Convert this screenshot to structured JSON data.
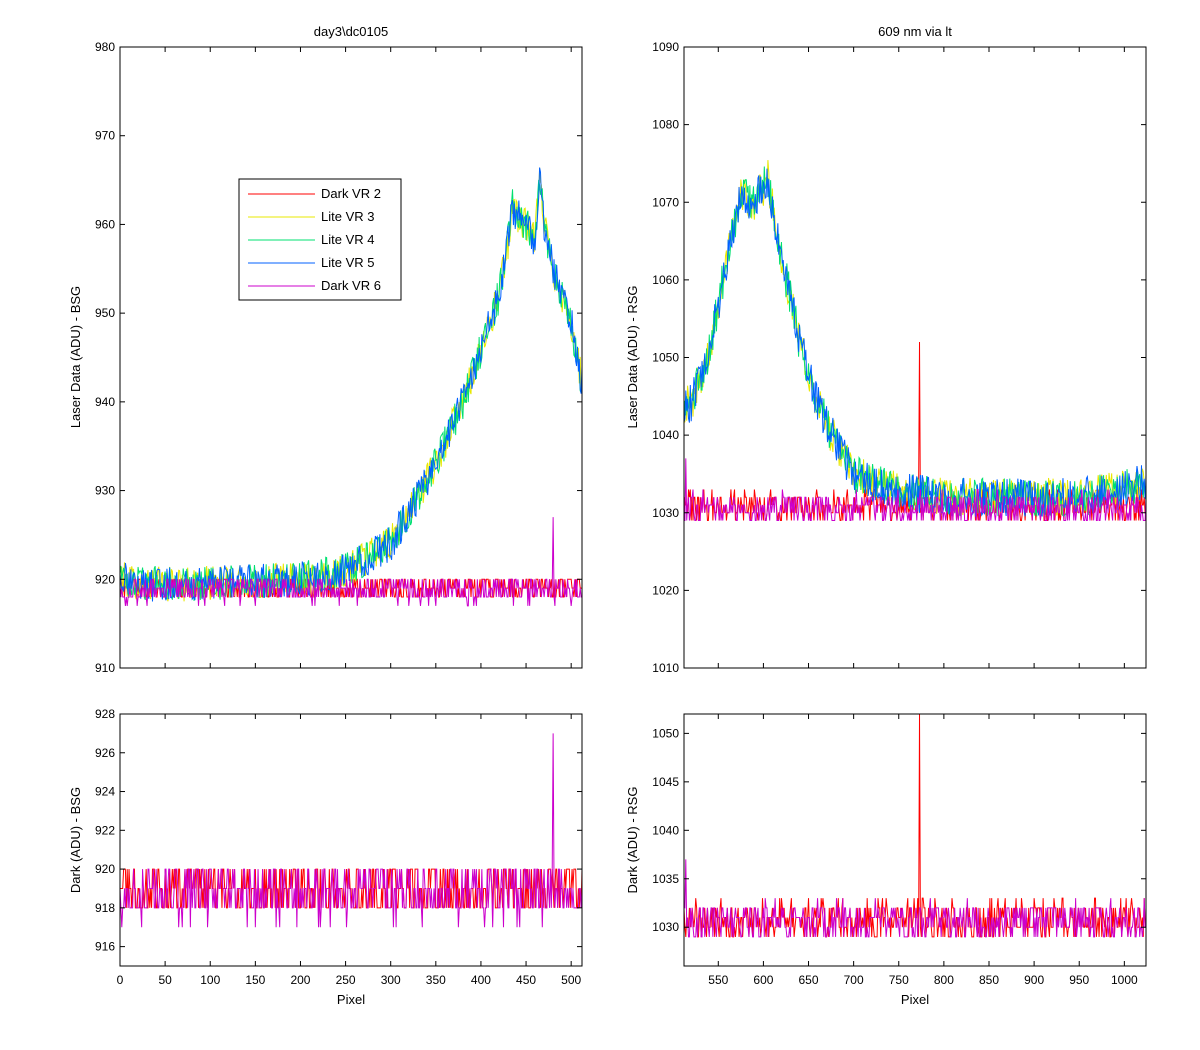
{
  "chart_data": [
    {
      "id": "top-left",
      "type": "line",
      "title": "day3\\dc0105",
      "xlabel": "",
      "ylabel": "Laser Data (ADU) - BSG",
      "xlim": [
        0,
        512
      ],
      "ylim": [
        910,
        980
      ],
      "xticks": [],
      "yticks": [
        910,
        920,
        930,
        940,
        950,
        960,
        970,
        980
      ],
      "legend": {
        "placement": "upper-left-center",
        "entries": [
          "Dark VR 2",
          "Lite VR 3",
          "Lite VR 4",
          "Lite VR 5",
          "Dark VR 6"
        ]
      },
      "series": [
        {
          "name": "Dark VR 2",
          "color": "#ff0000",
          "kind": "dark",
          "base": 919,
          "noise": 1.5,
          "x": [
            0,
            512
          ],
          "spike": {
            "x": [],
            "y": []
          }
        },
        {
          "name": "Lite VR 3",
          "color": "#e8e800",
          "kind": "lite",
          "noise": 2,
          "x": [
            0,
            30,
            100,
            200,
            250,
            300,
            350,
            380,
            400,
            420,
            430,
            435,
            440,
            450,
            460,
            465,
            470,
            480,
            490,
            500,
            512
          ],
          "y": [
            920,
            919.5,
            919.5,
            920,
            921,
            924,
            933,
            940,
            946,
            952,
            958,
            962,
            961,
            960,
            958,
            966,
            960,
            955,
            952,
            949,
            942
          ]
        },
        {
          "name": "Lite VR 4",
          "color": "#00e070",
          "kind": "lite",
          "noise": 2,
          "x": [
            0,
            30,
            100,
            200,
            250,
            300,
            350,
            380,
            400,
            420,
            430,
            435,
            440,
            450,
            460,
            465,
            470,
            480,
            490,
            500,
            512
          ],
          "y": [
            920,
            919.5,
            919.5,
            920,
            921,
            924,
            933,
            940,
            946,
            952,
            958,
            962,
            961,
            960,
            958,
            966,
            960,
            955,
            952,
            949,
            942
          ]
        },
        {
          "name": "Lite VR 5",
          "color": "#0060ff",
          "kind": "lite",
          "noise": 2,
          "x": [
            0,
            30,
            100,
            200,
            250,
            300,
            350,
            380,
            400,
            420,
            430,
            435,
            440,
            450,
            460,
            465,
            470,
            480,
            490,
            500,
            512
          ],
          "y": [
            920,
            919.5,
            919.5,
            920,
            921,
            924,
            933,
            940,
            946,
            952,
            958,
            962,
            961,
            960,
            958,
            966,
            960,
            955,
            952,
            949,
            942
          ]
        },
        {
          "name": "Dark VR 6",
          "color": "#cc00cc",
          "kind": "dark",
          "base": 918.8,
          "noise": 1.5,
          "x": [
            0,
            512
          ],
          "spike": {
            "x": [
              480
            ],
            "y": [
              927
            ]
          }
        }
      ]
    },
    {
      "id": "top-right",
      "type": "line",
      "title": "609 nm via lt",
      "xlabel": "",
      "ylabel": "Laser Data (ADU) - RSG",
      "xlim": [
        512,
        1024
      ],
      "ylim": [
        1010,
        1090
      ],
      "xticks": [],
      "yticks": [
        1010,
        1020,
        1030,
        1040,
        1050,
        1060,
        1070,
        1080,
        1090
      ],
      "series": [
        {
          "name": "Dark VR 2",
          "color": "#ff0000",
          "kind": "dark",
          "base": 1030.8,
          "noise": 2,
          "x": [
            512,
            1024
          ],
          "spike": {
            "x": [
              773
            ],
            "y": [
              1052
            ]
          }
        },
        {
          "name": "Lite VR 3",
          "color": "#e8e800",
          "kind": "lite",
          "noise": 2.5,
          "x": [
            512,
            520,
            540,
            560,
            575,
            590,
            605,
            620,
            640,
            660,
            680,
            700,
            740,
            800,
            900,
            950,
            1000,
            1024
          ],
          "y": [
            1044,
            1044,
            1051,
            1063,
            1071,
            1070,
            1073,
            1063,
            1052,
            1044,
            1039,
            1035,
            1033,
            1032,
            1032,
            1032,
            1033,
            1034
          ]
        },
        {
          "name": "Lite VR 4",
          "color": "#00e070",
          "kind": "lite",
          "noise": 2.5,
          "x": [
            512,
            520,
            540,
            560,
            575,
            590,
            605,
            620,
            640,
            660,
            680,
            700,
            740,
            800,
            900,
            950,
            1000,
            1024
          ],
          "y": [
            1044,
            1044,
            1051,
            1063,
            1071,
            1070,
            1073,
            1063,
            1052,
            1044,
            1039,
            1035,
            1033,
            1032,
            1032,
            1032,
            1033,
            1034
          ]
        },
        {
          "name": "Lite VR 5",
          "color": "#0060ff",
          "kind": "lite",
          "noise": 2.5,
          "x": [
            512,
            520,
            540,
            560,
            575,
            590,
            605,
            620,
            640,
            660,
            680,
            700,
            740,
            800,
            900,
            950,
            1000,
            1024
          ],
          "y": [
            1044,
            1044,
            1051,
            1063,
            1071,
            1070,
            1073,
            1063,
            1052,
            1044,
            1039,
            1035,
            1033,
            1032,
            1032,
            1032,
            1033,
            1034
          ]
        },
        {
          "name": "Dark VR 6",
          "color": "#cc00cc",
          "kind": "dark",
          "base": 1030.6,
          "noise": 2,
          "x": [
            512,
            1024
          ],
          "spike": {
            "x": [
              514
            ],
            "y": [
              1037
            ]
          }
        }
      ]
    },
    {
      "id": "bottom-left",
      "type": "line",
      "title": "",
      "xlabel": "Pixel",
      "ylabel": "Dark (ADU) - BSG",
      "xlim": [
        0,
        512
      ],
      "ylim": [
        915,
        928
      ],
      "xticks": [
        0,
        50,
        100,
        150,
        200,
        250,
        300,
        350,
        400,
        450,
        500
      ],
      "yticks": [
        916,
        918,
        920,
        922,
        924,
        926,
        928
      ],
      "series": [
        {
          "name": "Dark VR 2",
          "color": "#ff0000",
          "kind": "dark",
          "base": 919,
          "noise": 1.5,
          "x": [
            0,
            512
          ],
          "spike": {
            "x": [],
            "y": []
          }
        },
        {
          "name": "Dark VR 6",
          "color": "#cc00cc",
          "kind": "dark",
          "base": 918.8,
          "noise": 1.5,
          "x": [
            0,
            512
          ],
          "spike": {
            "x": [
              480
            ],
            "y": [
              927
            ]
          }
        }
      ]
    },
    {
      "id": "bottom-right",
      "type": "line",
      "title": "",
      "xlabel": "Pixel",
      "ylabel": "Dark (ADU) - RSG",
      "xlim": [
        512,
        1024
      ],
      "ylim": [
        1026,
        1052
      ],
      "xticks": [
        550,
        600,
        650,
        700,
        750,
        800,
        850,
        900,
        950,
        1000
      ],
      "yticks": [
        1030,
        1035,
        1040,
        1045,
        1050
      ],
      "series": [
        {
          "name": "Dark VR 2",
          "color": "#ff0000",
          "kind": "dark",
          "base": 1030.8,
          "noise": 2,
          "x": [
            512,
            1024
          ],
          "spike": {
            "x": [
              773
            ],
            "y": [
              1052
            ]
          }
        },
        {
          "name": "Dark VR 6",
          "color": "#cc00cc",
          "kind": "dark",
          "base": 1030.6,
          "noise": 2,
          "x": [
            512,
            1024
          ],
          "spike": {
            "x": [
              514
            ],
            "y": [
              1037
            ]
          }
        }
      ]
    }
  ]
}
